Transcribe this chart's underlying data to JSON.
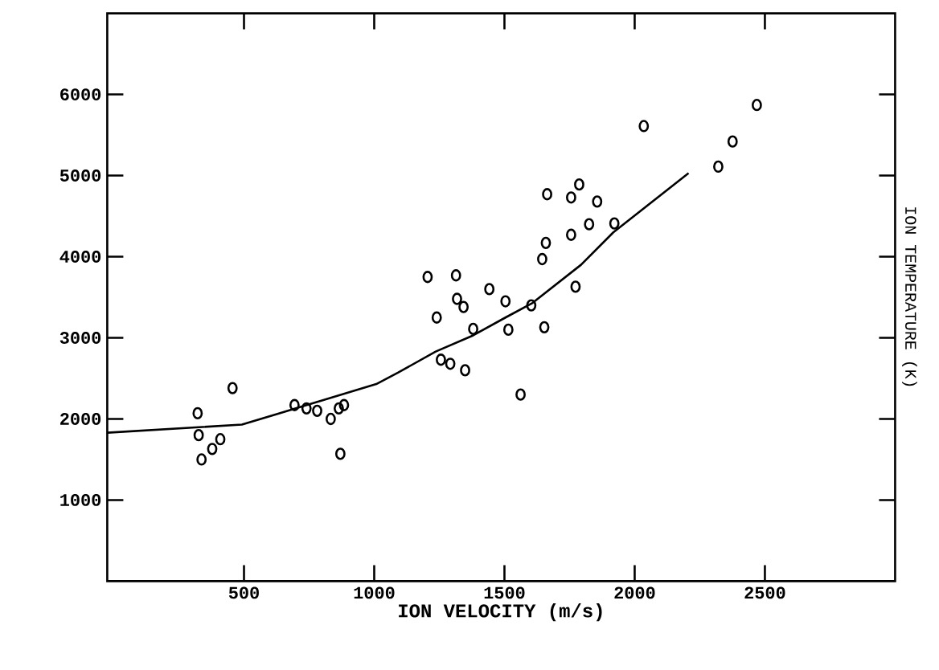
{
  "chart_data": {
    "type": "scatter",
    "xlabel": "ION VELOCITY (m/s)",
    "ylabel": "ION TEMPERATURE (K)",
    "xlim": [
      -25,
      3000
    ],
    "ylim": [
      0,
      7000
    ],
    "xticks": [
      500,
      1000,
      1500,
      2000,
      2500
    ],
    "yticks": [
      1000,
      2000,
      3000,
      4000,
      5000,
      6000
    ],
    "grid": false,
    "series": [
      {
        "marker": "circle",
        "color": "#000000",
        "x": [
          322,
          326,
          337,
          378,
          409,
          456,
          694,
          740,
          781,
          833,
          864,
          884,
          870,
          1205,
          1240,
          1256,
          1292,
          1314,
          1318,
          1343,
          1349,
          1380,
          1442,
          1504,
          1515,
          1562,
          1603,
          1645,
          1653,
          1659,
          1664,
          1756,
          1756,
          1773,
          1787,
          1825,
          1856,
          1922,
          2035,
          2321,
          2376,
          2469
        ],
        "values": [
          2070,
          1800,
          1500,
          1630,
          1750,
          2380,
          2170,
          2130,
          2100,
          2000,
          2130,
          2170,
          1570,
          3750,
          3250,
          2730,
          2680,
          3770,
          3480,
          3380,
          2600,
          3110,
          3600,
          3450,
          3100,
          2300,
          3400,
          3970,
          3130,
          4170,
          4770,
          4730,
          4270,
          3630,
          4890,
          4400,
          4680,
          4410,
          5610,
          5110,
          5420,
          5870
        ]
      },
      {
        "type": "line",
        "marker": "none",
        "line_style": "solid",
        "color": "#000000",
        "x": [
          -25,
          492,
          636,
          802,
          1008,
          1091,
          1236,
          1380,
          1504,
          1608,
          1794,
          1918,
          2207
        ],
        "values": [
          1830,
          1930,
          2070,
          2230,
          2430,
          2570,
          2830,
          3030,
          3250,
          3430,
          3900,
          4300,
          5030
        ]
      }
    ]
  }
}
